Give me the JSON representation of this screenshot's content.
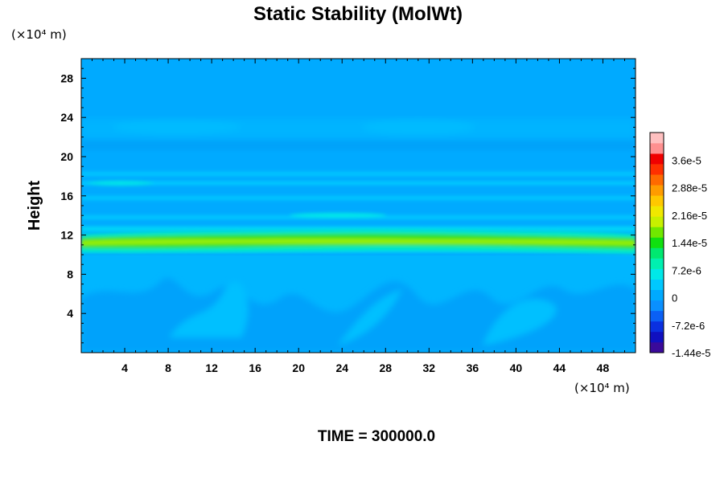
{
  "chart_data": {
    "type": "heatmap",
    "title": "Static Stability (MolWt)",
    "xlabel": "",
    "ylabel": "Height",
    "x_unit": "(×10⁴ m)",
    "y_unit": "(×10⁴ m)",
    "xlim": [
      0,
      51
    ],
    "ylim": [
      0,
      30
    ],
    "x_ticks": [
      "4",
      "8",
      "12",
      "16",
      "20",
      "24",
      "28",
      "32",
      "36",
      "40",
      "44",
      "48"
    ],
    "x_tick_values": [
      4,
      8,
      12,
      16,
      20,
      24,
      28,
      32,
      36,
      40,
      44,
      48
    ],
    "y_ticks": [
      "4",
      "8",
      "12",
      "16",
      "20",
      "24",
      "28"
    ],
    "y_tick_values": [
      4,
      8,
      12,
      16,
      20,
      24,
      28
    ],
    "colorbar": {
      "tick_labels": [
        "3.6e-5",
        "2.88e-5",
        "2.16e-5",
        "1.44e-5",
        "7.2e-6",
        "0",
        "-7.2e-6",
        "-1.44e-5"
      ],
      "tick_values": [
        3.6e-05,
        2.88e-05,
        2.16e-05,
        1.44e-05,
        7.2e-06,
        0,
        -7.2e-06,
        -1.44e-05
      ],
      "range": [
        -1.44e-05,
        4.32e-05
      ],
      "levels": [
        "#3a0a9a",
        "#1010c0",
        "#0a30e0",
        "#0a60f5",
        "#0a90ff",
        "#00aaff",
        "#00c8ff",
        "#00e8e8",
        "#00f0b0",
        "#00e870",
        "#10e010",
        "#70e800",
        "#c8f000",
        "#f0e800",
        "#ffc800",
        "#ff9c00",
        "#ff6a00",
        "#ff3000",
        "#f00000",
        "#ff9090",
        "#ffc0c0"
      ]
    },
    "field": {
      "background_value": 0,
      "dominant_band": {
        "height": 11.3,
        "peak_value": 1.6e-05,
        "description_color": "#10e010"
      },
      "secondary_bands_heights": [
        13.5,
        17.4,
        21.7,
        23.5
      ],
      "lower_region_value": -2e-06
    },
    "grid": false,
    "legend_placement": "right"
  },
  "footer": {
    "time_label": "TIME = 300000.0"
  }
}
